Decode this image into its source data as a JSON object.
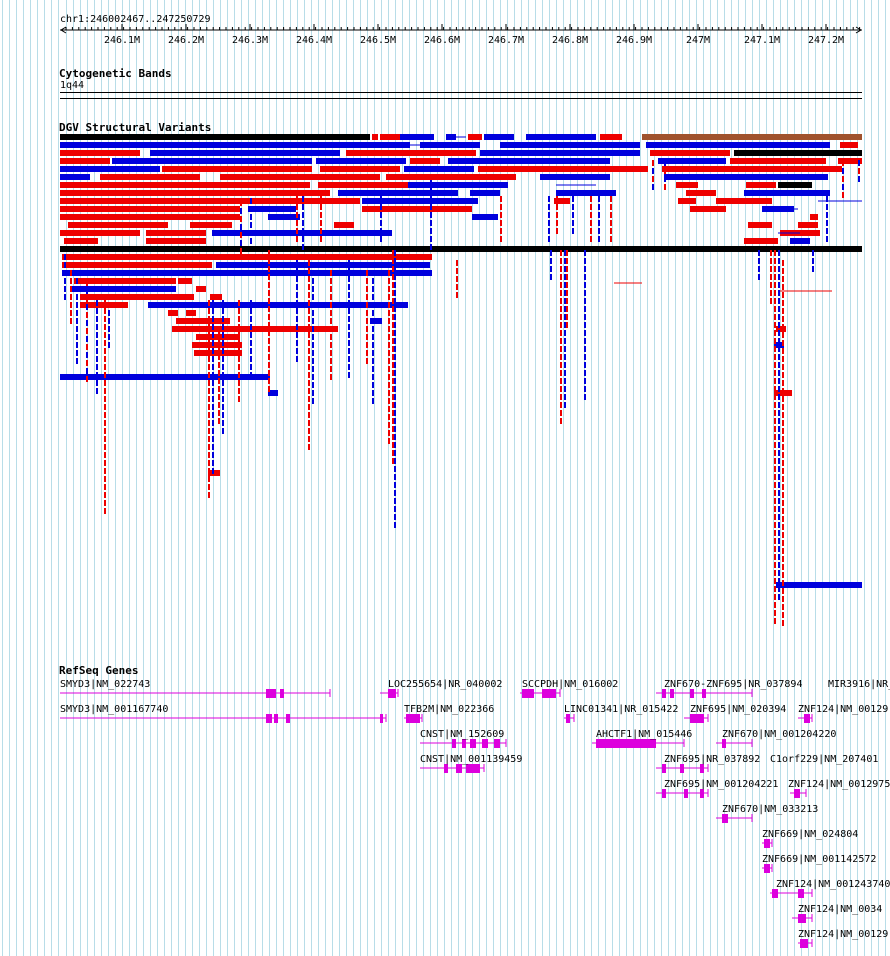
{
  "ruler": {
    "location": "chr1:246002467..247250729",
    "ticks": [
      "246.1M",
      "246.2M",
      "246.3M",
      "246.4M",
      "246.5M",
      "246.6M",
      "246.7M",
      "246.8M",
      "246.9M",
      "247M",
      "247.1M",
      "247.2M"
    ]
  },
  "cyto": {
    "title": "Cytogenetic Bands",
    "band": "1q44"
  },
  "dgv": {
    "title": "DGV Structural Variants"
  },
  "refseq": {
    "title": "RefSeq Genes",
    "genes": [
      "SMYD3|NM_022743",
      "SMYD3|NM_001167740",
      "LOC255654|NR_040002",
      "TFB2M|NM_022366",
      "CNST|NM_152609",
      "CNST|NM_001139459",
      "SCCPDH|NM_016002",
      "LINC01341|NR_015422",
      "AHCTF1|NM_015446",
      "ZNF670-ZNF695|NR_037894",
      "ZNF695|NM_020394",
      "ZNF670|NM_001204220",
      "ZNF695|NR_037892",
      "ZNF695|NM_001204221",
      "ZNF670|NM_033213",
      "MIR3916|NR_",
      "ZNF124|NM_00129",
      "C1orf229|NM_207401",
      "ZNF124|NM_0012975",
      "ZNF669|NM_024804",
      "ZNF669|NM_001142572",
      "ZNF124|NM_001243740",
      "ZNF124|NM_0034",
      "ZNF124|NM_00129"
    ]
  },
  "colors": {
    "gain": "#ee0000",
    "loss": "#0000dd",
    "complex": "#000000",
    "other": "#a0522d",
    "gene": "#dd00dd",
    "grid": "#b8dde8"
  }
}
